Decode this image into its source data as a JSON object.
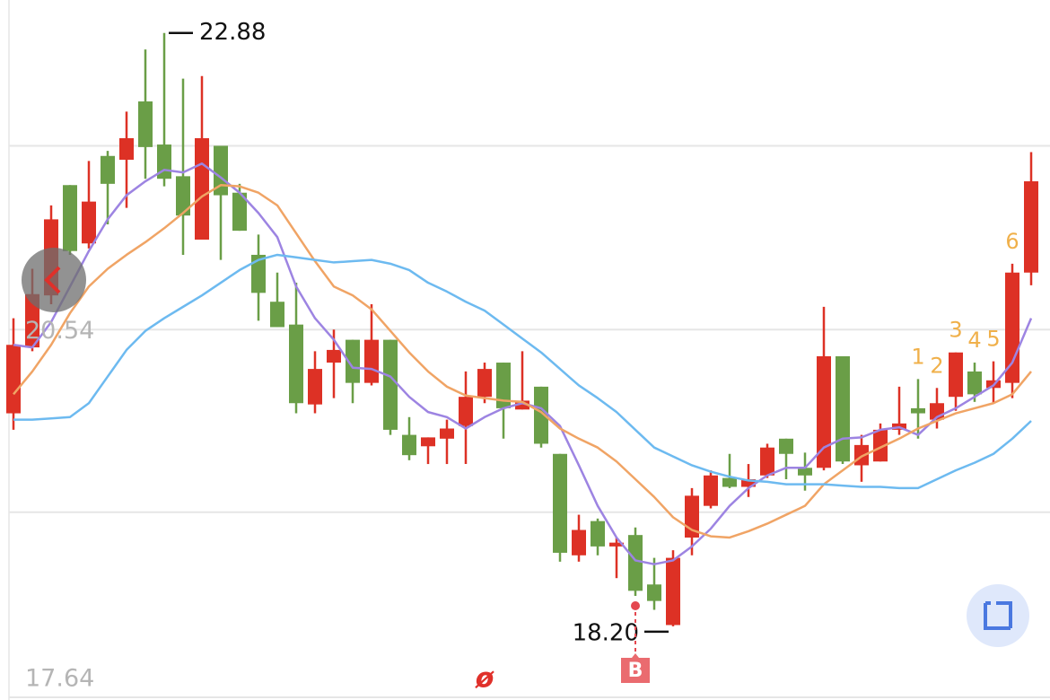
{
  "chart_data": {
    "type": "candlestick",
    "ylim": [
      17.64,
      23.14
    ],
    "yticks": [
      {
        "value": 21.99,
        "label": null
      },
      20.54,
      {
        "value": 19.1,
        "label": null
      },
      17.64
    ],
    "grid": true,
    "up_color": "#dd3125",
    "down_color": "#6a9e47",
    "open": [
      19.88,
      20.4,
      20.81,
      21.68,
      21.22,
      21.91,
      21.88,
      22.34,
      22.0,
      21.75,
      21.25,
      21.99,
      21.62,
      21.13,
      20.76,
      20.58,
      19.95,
      20.28,
      20.46,
      20.12,
      20.46,
      19.71,
      19.62,
      19.68,
      19.78,
      20.01,
      20.28,
      19.91,
      20.09,
      19.56,
      18.76,
      19.03,
      18.83,
      18.92,
      18.53,
      18.21,
      18.9,
      19.15,
      19.37,
      19.3,
      19.39,
      19.68,
      19.45,
      19.45,
      20.33,
      19.47,
      19.5,
      19.75,
      19.92,
      19.83,
      20.01,
      20.21,
      20.08,
      20.12,
      20.99
    ],
    "high": [
      20.63,
      21.02,
      21.52,
      21.68,
      21.87,
      21.95,
      22.26,
      22.75,
      22.88,
      22.52,
      22.54,
      21.99,
      21.69,
      21.29,
      20.99,
      20.91,
      20.37,
      20.54,
      20.46,
      20.74,
      20.46,
      19.85,
      19.69,
      19.83,
      20.21,
      20.28,
      20.28,
      20.37,
      20.09,
      19.56,
      19.08,
      19.05,
      18.9,
      18.98,
      18.74,
      18.8,
      19.29,
      19.43,
      19.56,
      19.48,
      19.64,
      19.68,
      19.57,
      20.72,
      20.33,
      19.71,
      19.8,
      20.09,
      20.15,
      20.08,
      20.36,
      20.28,
      20.29,
      21.06,
      21.94
    ],
    "low": [
      19.75,
      20.37,
      20.74,
      21.13,
      21.18,
      21.37,
      21.5,
      21.73,
      21.67,
      21.13,
      21.25,
      21.09,
      21.32,
      20.61,
      20.56,
      19.88,
      19.88,
      20.0,
      19.96,
      20.1,
      19.71,
      19.51,
      19.48,
      19.48,
      19.48,
      19.96,
      19.68,
      19.91,
      19.61,
      18.71,
      18.71,
      18.76,
      18.58,
      18.44,
      18.33,
      18.2,
      18.76,
      19.13,
      19.29,
      19.22,
      19.37,
      19.36,
      19.27,
      19.43,
      19.48,
      19.34,
      19.5,
      19.71,
      19.68,
      19.76,
      19.9,
      19.97,
      19.96,
      20.0,
      20.89
    ],
    "close": [
      20.42,
      20.82,
      21.41,
      21.16,
      21.55,
      21.69,
      22.05,
      21.98,
      21.73,
      21.44,
      22.05,
      21.6,
      21.32,
      20.83,
      20.56,
      19.96,
      20.23,
      20.38,
      20.12,
      20.46,
      19.75,
      19.55,
      19.69,
      19.76,
      20.01,
      20.23,
      19.92,
      19.98,
      19.64,
      18.78,
      18.96,
      18.83,
      18.86,
      18.48,
      18.4,
      18.74,
      19.23,
      19.39,
      19.3,
      19.36,
      19.61,
      19.56,
      19.39,
      20.33,
      19.5,
      19.63,
      19.75,
      19.8,
      19.88,
      19.96,
      20.36,
      20.03,
      20.14,
      20.99,
      21.71
    ],
    "series": [
      {
        "color": "#9d84e2",
        "values": [
          20.42,
          20.4,
          20.6,
          20.88,
          21.16,
          21.41,
          21.6,
          21.71,
          21.8,
          21.78,
          21.85,
          21.74,
          21.62,
          21.46,
          21.27,
          20.88,
          20.63,
          20.46,
          20.24,
          20.23,
          20.17,
          20.01,
          19.89,
          19.85,
          19.76,
          19.85,
          19.92,
          19.96,
          19.92,
          19.78,
          19.47,
          19.15,
          18.9,
          18.72,
          18.69,
          18.72,
          18.83,
          18.97,
          19.15,
          19.29,
          19.39,
          19.45,
          19.45,
          19.61,
          19.68,
          19.69,
          19.75,
          19.77,
          19.71,
          19.85,
          19.92,
          20.01,
          20.1,
          20.28,
          20.63
        ]
      },
      {
        "color": "#f0a465",
        "values": [
          20.03,
          20.21,
          20.42,
          20.67,
          20.88,
          21.02,
          21.13,
          21.23,
          21.34,
          21.46,
          21.59,
          21.68,
          21.67,
          21.62,
          21.52,
          21.3,
          21.08,
          20.88,
          20.81,
          20.7,
          20.53,
          20.36,
          20.21,
          20.09,
          20.02,
          20.0,
          19.98,
          19.97,
          19.89,
          19.76,
          19.68,
          19.61,
          19.5,
          19.36,
          19.22,
          19.06,
          18.96,
          18.91,
          18.9,
          18.95,
          19.01,
          19.08,
          19.15,
          19.32,
          19.43,
          19.54,
          19.61,
          19.68,
          19.76,
          19.82,
          19.88,
          19.92,
          19.96,
          20.03,
          20.21
        ]
      },
      {
        "color": "#6dbaf0",
        "values": [
          19.83,
          19.83,
          19.84,
          19.85,
          19.96,
          20.17,
          20.38,
          20.53,
          20.63,
          20.72,
          20.81,
          20.91,
          21.01,
          21.09,
          21.13,
          21.11,
          21.09,
          21.07,
          21.08,
          21.09,
          21.06,
          21.01,
          20.91,
          20.84,
          20.76,
          20.69,
          20.58,
          20.47,
          20.36,
          20.23,
          20.1,
          20.0,
          19.89,
          19.75,
          19.61,
          19.54,
          19.47,
          19.42,
          19.38,
          19.35,
          19.34,
          19.32,
          19.32,
          19.32,
          19.31,
          19.3,
          19.3,
          19.29,
          19.29,
          19.36,
          19.43,
          19.49,
          19.56,
          19.68,
          19.82
        ]
      }
    ],
    "max_marker": 22.88,
    "min_marker": {
      "value": 18.2,
      "label": "18.20"
    },
    "signal_label": "B",
    "symbol": "ø",
    "sequence_labels": [
      1,
      2,
      3,
      4,
      5,
      6
    ]
  }
}
